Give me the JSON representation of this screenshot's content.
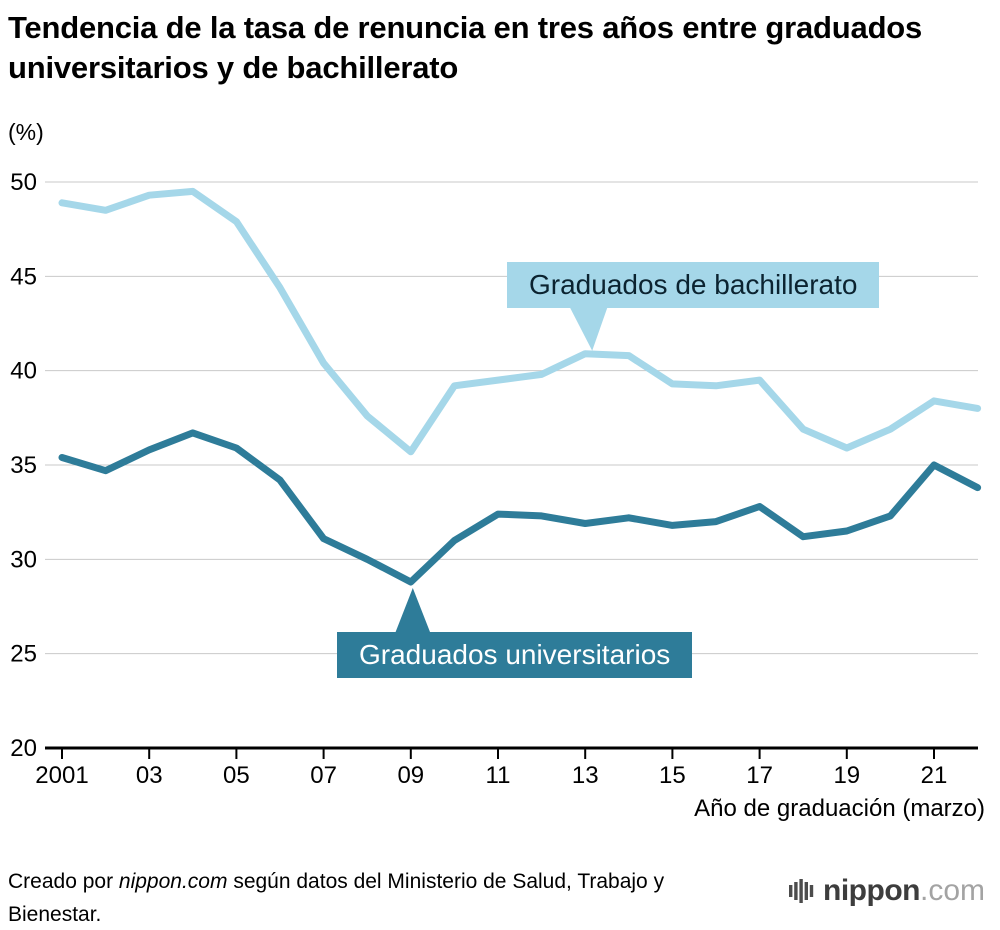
{
  "title": "Tendencia de la tasa de renuncia en tres años entre graduados universitarios y de bachillerato",
  "y_unit_label": "(%)",
  "x_axis_label": "Año de graduación (marzo)",
  "chart_data": {
    "type": "line",
    "x": [
      2001,
      2002,
      2003,
      2004,
      2005,
      2006,
      2007,
      2008,
      2009,
      2010,
      2011,
      2012,
      2013,
      2014,
      2015,
      2016,
      2017,
      2018,
      2019,
      2020,
      2021,
      2022
    ],
    "xtick_positions": [
      2001,
      2003,
      2005,
      2007,
      2009,
      2011,
      2013,
      2015,
      2017,
      2019,
      2021
    ],
    "xtick_labels": [
      "2001",
      "03",
      "05",
      "07",
      "09",
      "11",
      "13",
      "15",
      "17",
      "19",
      "21"
    ],
    "ylim": [
      20,
      50
    ],
    "yticks": [
      20,
      25,
      30,
      35,
      40,
      45,
      50
    ],
    "grid": true,
    "legend_position": "inline-callouts",
    "series": [
      {
        "name": "Graduados de bachillerato",
        "color": "#a5d7e9",
        "values": [
          48.9,
          48.5,
          49.3,
          49.5,
          47.9,
          44.4,
          40.4,
          37.6,
          35.7,
          39.2,
          39.5,
          39.8,
          40.9,
          40.8,
          39.3,
          39.2,
          39.5,
          36.9,
          35.9,
          36.9,
          38.4,
          38.0
        ]
      },
      {
        "name": "Graduados universitarios",
        "color": "#2e7c99",
        "values": [
          35.4,
          34.7,
          35.8,
          36.7,
          35.9,
          34.2,
          31.1,
          30.0,
          28.8,
          31.0,
          32.4,
          32.3,
          31.9,
          32.2,
          31.8,
          32.0,
          32.8,
          31.2,
          31.5,
          32.3,
          35.0,
          33.8
        ]
      }
    ],
    "annotations": [
      {
        "label": "Graduados de bachillerato",
        "anchor_x": 2013,
        "anchor_y": 40.9,
        "style": "light"
      },
      {
        "label": "Graduados universitarios",
        "anchor_x": 2009,
        "anchor_y": 28.8,
        "style": "dark"
      }
    ]
  },
  "footer": {
    "credit_parts": [
      "Creado por ",
      "nippon.com",
      " según datos del Ministerio de Salud, Trabajo y Bienestar."
    ],
    "logo_text": "nippon",
    "logo_domain": ".com"
  }
}
